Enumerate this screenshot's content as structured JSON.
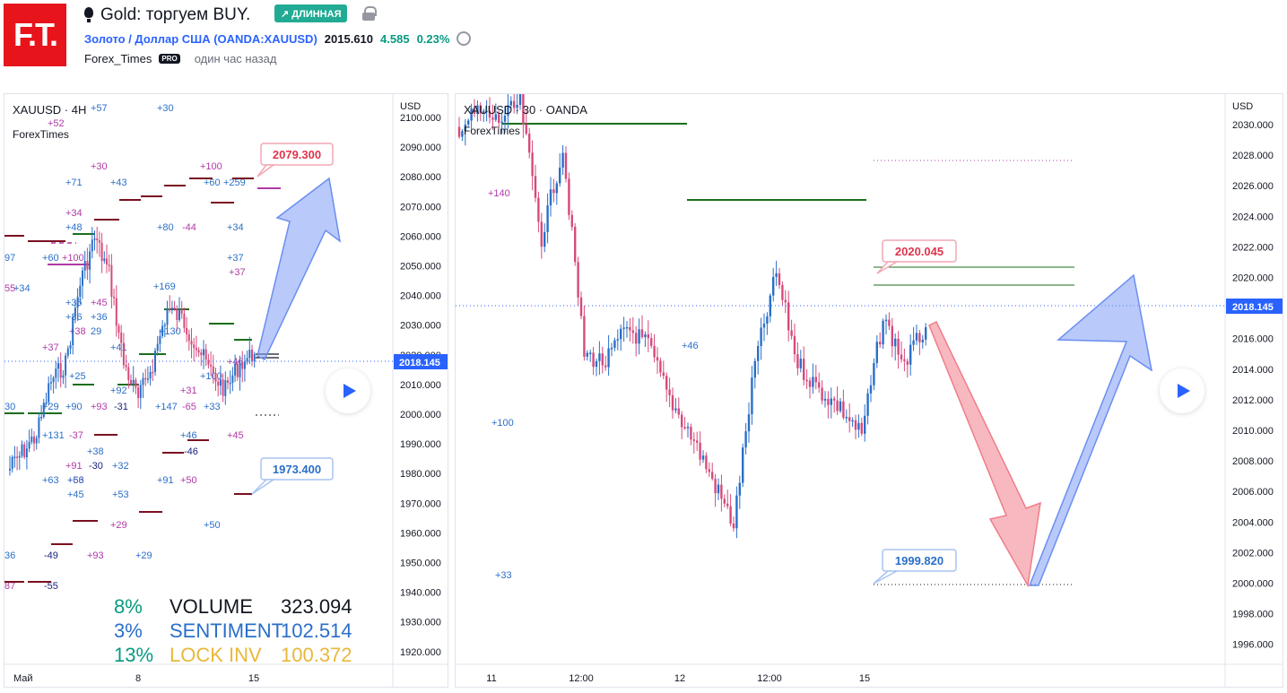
{
  "header": {
    "logo_text": "F.T.",
    "idea_title": "Gold: торгуем BUY.",
    "direction_badge": "↗ ДЛИННАЯ",
    "symbol_link": "Золото / Доллар США (OANDA:XAUUSD)",
    "price": "2015.610",
    "change": "4.585",
    "change_pct": "0.23%",
    "author": "Forex_Times",
    "author_badge": "PRO",
    "published": "один час назад"
  },
  "left_chart": {
    "title": "XAUUSD · 4Н",
    "subtitle": "ForexTimes",
    "currency": "USD",
    "y_ticks": [
      "2100.000",
      "2090.000",
      "2080.000",
      "2070.000",
      "2060.000",
      "2050.000",
      "2040.000",
      "2030.000",
      "2020.000",
      "2010.000",
      "2000.000",
      "1990.000",
      "1980.000",
      "1970.000",
      "1960.000",
      "1950.000",
      "1940.000",
      "1930.000",
      "1920.000"
    ],
    "x_ticks": [
      "Май",
      "8",
      "15"
    ],
    "last_price": "2018.145",
    "target_label": "2079.300",
    "stop_label": "1973.400",
    "stats": [
      {
        "pct": "8%",
        "label": "VOLUME",
        "value": "323.094",
        "pct_color": "#089981",
        "label_color": "#131722",
        "value_color": "#131722"
      },
      {
        "pct": "3%",
        "label": "SENTIMENT",
        "value": "102.514",
        "pct_color": "#2a6fc8",
        "label_color": "#2a6fc8",
        "value_color": "#2a6fc8"
      },
      {
        "pct": "13%",
        "label": "LOCK INV",
        "value": "100.372",
        "pct_color": "#089981",
        "label_color": "#e8b83a",
        "value_color": "#e8b83a"
      }
    ],
    "annotations": [
      "+52",
      "+57",
      "+30",
      "+30",
      "+71",
      "+43",
      "+100",
      "+60",
      "+259",
      "+34",
      "+48",
      "+80",
      "-44",
      "+34",
      "+60",
      "+100",
      "+37",
      "+34",
      "+37",
      "+169",
      "+36",
      "+45",
      "+36",
      "+36",
      "+38",
      "29",
      "+130",
      "+37",
      "+41",
      "+25",
      "+46",
      "+100",
      "+92",
      "+31",
      "+29",
      "+90",
      "+93",
      "-31",
      "+147",
      "-65",
      "+33",
      "+131",
      "-37",
      "+63",
      "+46",
      "+45",
      "+38",
      "-46",
      "+91",
      "-30",
      "+32",
      "+63",
      "+56",
      "+91",
      "+50",
      "+45",
      "+53",
      "+29",
      "+50",
      "-49",
      "+93",
      "+29",
      "36",
      "87",
      "-55",
      "97",
      "55",
      "30"
    ]
  },
  "right_chart": {
    "title": "XAUUSD · 30 · OANDA",
    "subtitle": "ForexTimes",
    "currency": "USD",
    "y_ticks": [
      "2030.000",
      "2028.000",
      "2026.000",
      "2024.000",
      "2022.000",
      "2020.000",
      "2018.000",
      "2016.000",
      "2014.000",
      "2012.000",
      "2010.000",
      "2008.000",
      "2006.000",
      "2004.000",
      "2002.000",
      "2000.000",
      "1998.000",
      "1996.000"
    ],
    "x_ticks": [
      "11",
      "12:00",
      "12",
      "12:00",
      "15"
    ],
    "last_price": "2018.145",
    "target_label": "2020.045",
    "stop_label": "1999.820",
    "annotations": [
      "+140",
      "+100",
      "+33",
      "+46"
    ]
  },
  "colors": {
    "up": "#2a6fc8",
    "down": "#d64a7c",
    "target_arrow": "#7f9cf5",
    "down_arrow": "#f28b95",
    "price_tag": "#2962ff",
    "green_level": "#1b6e1b",
    "maroon_level": "#7a1020",
    "purple_level": "#b03aa6"
  }
}
